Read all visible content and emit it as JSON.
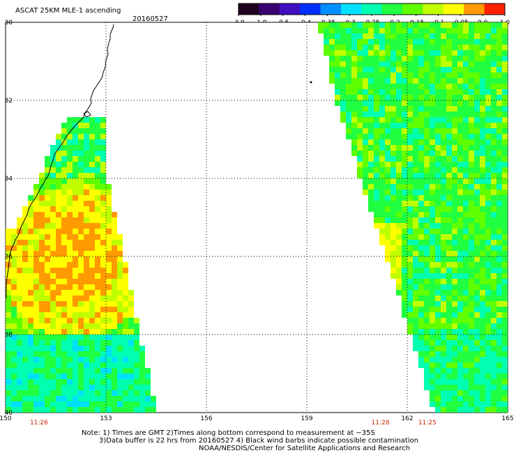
{
  "header": {
    "product": "ASCAT 25KM MLE-1 ascending",
    "date": "20160527"
  },
  "colorbar": {
    "tick_labels": [
      "-3.0",
      "-1.0",
      "-0.5",
      "-0.4",
      "-0.35",
      "-0.3",
      "-0.25",
      "-0.2",
      "-0.15",
      "-0.1",
      "-0.05",
      "0.0",
      "1.0"
    ],
    "colors": [
      "#200020",
      "#3a0070",
      "#4010c0",
      "#0030ff",
      "#0090ff",
      "#00e0ff",
      "#00ffb0",
      "#20ff40",
      "#60ff00",
      "#c0ff00",
      "#ffff00",
      "#ff9a00",
      "#ff2000"
    ]
  },
  "map": {
    "lat_labels": [
      "30",
      "32",
      "34",
      "36",
      "38",
      "40"
    ],
    "lon_labels": [
      "150",
      "153",
      "156",
      "159",
      "162",
      "165"
    ],
    "lat_values": [
      -30,
      -32,
      -34,
      -36,
      -38,
      -40
    ],
    "lon_values": [
      150,
      153,
      156,
      159,
      162,
      165
    ],
    "extent": {
      "lon_min": 150,
      "lon_max": 165,
      "lat_top": -30,
      "lat_bottom": -40
    },
    "grid": "dotted",
    "swath_times": [
      {
        "text": "11:26",
        "lon": 151
      },
      {
        "text": "11:28",
        "lon": 161.2
      },
      {
        "text": "11:25",
        "lon": 162.6
      }
    ],
    "swath_time_color": "#cc2200"
  },
  "notes": {
    "line1": "Note: 1) Times are GMT 2)Times along bottom correspond to measurement at ~35S",
    "line2": "3)Data buffer is 22 hrs from 20160527 4) Black wind barbs indicate possible contamination",
    "line3": "NOAA/NESDIS/Center for Satellite Applications and Research"
  }
}
